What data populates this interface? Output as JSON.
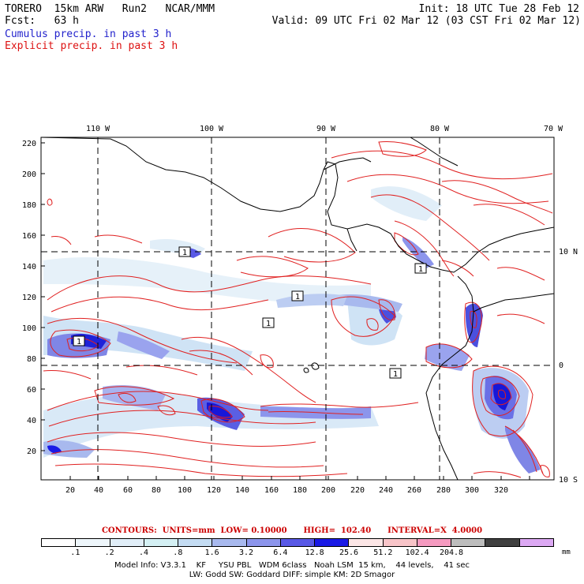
{
  "header": {
    "line1_left": "TORERO  15km ARW   Run2   NCAR/MMM",
    "line1_right": "Init: 18 UTC Tue 28 Feb 12",
    "line2_left": "Fcst:   63 h",
    "line2_right": "Valid: 09 UTC Fri 02 Mar 12 (03 CST Fri 02 Mar 12)",
    "field1": "Cumulus precip. in past 3 h",
    "field2": "Explicit precip. in past 3 h"
  },
  "colors": {
    "cumulus_text": "#2222cc",
    "explicit_text": "#dd1111",
    "contour": "#e02020",
    "coast": "#000000"
  },
  "map": {
    "top_lon_labels": [
      "110 W",
      "100 W",
      "90 W",
      "80 W",
      "70 W"
    ],
    "right_lat_labels": [
      "10 N",
      "0",
      "10 S"
    ],
    "left_y_ticks": [
      "220",
      "200",
      "180",
      "160",
      "140",
      "120",
      "100",
      "80",
      "60",
      "40",
      "20"
    ],
    "bottom_x_ticks": [
      "20",
      "40",
      "60",
      "80",
      "100",
      "120",
      "140",
      "160",
      "180",
      "200",
      "220",
      "240",
      "260",
      "280",
      "300",
      "320"
    ],
    "contour_box_labels": [
      "1",
      "1",
      "1",
      "1",
      "1",
      "1"
    ]
  },
  "legend": {
    "contour_line": "CONTOURS:  UNITS=mm  LOW= 0.10000      HIGH=  102.40      INTERVAL=X  4.0000",
    "colors": [
      "#ffffff",
      "#eef6fb",
      "#e1eef8",
      "#d4f0f4",
      "#c4dcf3",
      "#a8b9ee",
      "#8c95ec",
      "#5959e6",
      "#1a1ae6",
      "#fce6e6",
      "#f8c4c8",
      "#f59ac0",
      "#bdbdbd",
      "#404040",
      "#dca8f3"
    ],
    "labels": [
      ".1",
      ".2",
      ".4",
      ".8",
      "1.6",
      "3.2",
      "6.4",
      "12.8",
      "25.6",
      "51.2",
      "102.4",
      "204.8"
    ],
    "unit": "mm"
  },
  "footer": {
    "line1": "Model Info: V3.3.1    KF     YSU PBL   WDM 6class   Noah LSM  15 km,    44 levels,    41 sec",
    "line2": "LW: Godd SW: Goddard DIFF: simple KM: 2D Smagor"
  }
}
